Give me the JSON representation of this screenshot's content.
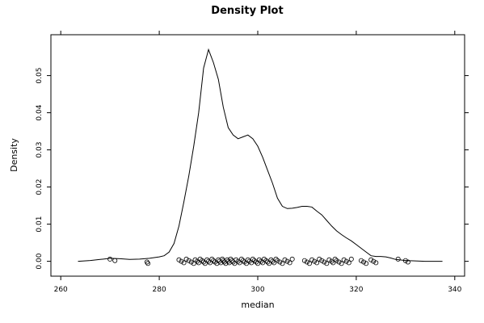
{
  "chart_data": {
    "type": "line",
    "title": "Density Plot",
    "xlabel": "median",
    "ylabel": "Density",
    "xlim": [
      258,
      342
    ],
    "ylim": [
      -0.004,
      0.061
    ],
    "x_ticks": [
      260,
      280,
      300,
      320,
      340
    ],
    "x_tick_labels": [
      "260",
      "280",
      "300",
      "320",
      "340"
    ],
    "y_ticks": [
      0.0,
      0.01,
      0.02,
      0.03,
      0.04,
      0.05
    ],
    "y_tick_labels": [
      "0.00",
      "0.01",
      "0.02",
      "0.03",
      "0.04",
      "0.05"
    ],
    "grid": false,
    "series": [
      {
        "x": [
          263.5,
          266,
          268,
          270,
          272,
          274,
          276,
          278,
          280,
          281,
          282,
          283,
          284,
          285,
          286,
          287,
          288,
          289,
          290,
          291,
          292,
          293,
          294,
          295,
          296,
          297,
          298,
          299,
          300,
          301,
          302,
          303,
          304,
          305,
          306,
          307,
          308,
          309,
          310,
          311,
          312,
          313,
          314,
          315,
          316,
          317,
          318,
          319,
          320,
          321,
          322,
          323,
          324,
          325,
          326,
          327,
          328,
          330,
          332,
          334,
          336,
          337.5
        ],
        "y": [
          0.0,
          0.0002,
          0.0005,
          0.0008,
          0.0007,
          0.0005,
          0.0006,
          0.0008,
          0.0012,
          0.0015,
          0.0025,
          0.0048,
          0.0095,
          0.016,
          0.023,
          0.031,
          0.04,
          0.052,
          0.057,
          0.0535,
          0.049,
          0.0415,
          0.036,
          0.034,
          0.033,
          0.0335,
          0.034,
          0.033,
          0.031,
          0.028,
          0.0245,
          0.021,
          0.017,
          0.0148,
          0.0142,
          0.0143,
          0.0145,
          0.0148,
          0.0148,
          0.0146,
          0.0135,
          0.0125,
          0.011,
          0.0095,
          0.0082,
          0.0072,
          0.0063,
          0.0055,
          0.0045,
          0.0035,
          0.0025,
          0.0015,
          0.0013,
          0.0013,
          0.0012,
          0.0009,
          0.0005,
          0.0002,
          0.0001,
          0.0,
          0.0,
          0.0
        ]
      }
    ],
    "rug": [
      270,
      271,
      277.5,
      277.7,
      284,
      284.5,
      285,
      285.5,
      286,
      286.5,
      287,
      287.3,
      287.7,
      288,
      288.3,
      288.7,
      289,
      289.3,
      289.7,
      290,
      290.3,
      290.7,
      291,
      291.3,
      291.7,
      292,
      292.2,
      292.5,
      292.8,
      293,
      293.2,
      293.5,
      293.8,
      294,
      294.2,
      294.5,
      294.8,
      295,
      295.3,
      295.6,
      296,
      296.3,
      296.7,
      297,
      297.3,
      297.7,
      298,
      298.3,
      298.7,
      299,
      299.3,
      299.7,
      300,
      300.3,
      300.7,
      301,
      301.3,
      301.7,
      302,
      302.3,
      302.7,
      303,
      303.3,
      303.7,
      304,
      304.5,
      305,
      305.5,
      306,
      306.5,
      307,
      309.5,
      310,
      310.5,
      311,
      311.5,
      312,
      312.5,
      313,
      313.5,
      314,
      314.5,
      315,
      315.3,
      315.7,
      316,
      316.5,
      317,
      317.5,
      318,
      318.5,
      319,
      321,
      321.5,
      322,
      323,
      323.5,
      324,
      328.5,
      330,
      330.5
    ]
  }
}
